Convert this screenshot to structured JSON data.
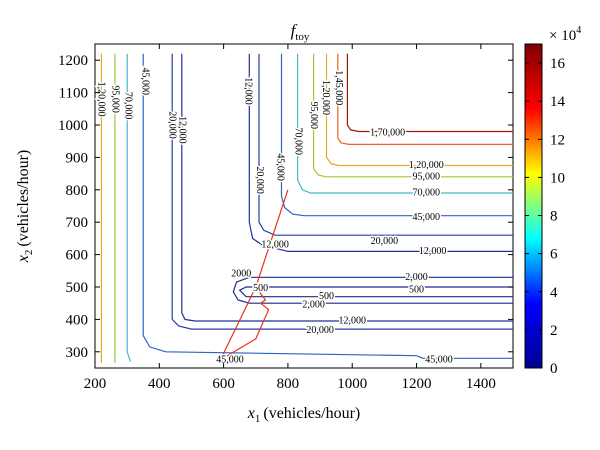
{
  "chart_data": {
    "type": "contour",
    "title": "f",
    "title_subscript": "toy",
    "xlabel_var": "x",
    "xlabel_sub": "1",
    "xlabel_unit": "(vehicles/hour)",
    "ylabel_var": "x",
    "ylabel_sub": "2",
    "ylabel_unit": "(vehicles/hour)",
    "xlim": [
      200,
      1500
    ],
    "ylim": [
      250,
      1250
    ],
    "x_ticks": [
      200,
      400,
      600,
      800,
      1000,
      1200,
      1400
    ],
    "y_ticks": [
      300,
      400,
      500,
      600,
      700,
      800,
      900,
      1000,
      1100,
      1200
    ],
    "colorbar": {
      "multiplier_base": "× 10",
      "multiplier_exp": "4",
      "range": [
        0,
        17
      ],
      "ticks": [
        0,
        2,
        4,
        6,
        8,
        10,
        12,
        14,
        16
      ],
      "stops": [
        "#00008f",
        "#0000ff",
        "#00ffff",
        "#ffff00",
        "#ff0000",
        "#800000"
      ]
    },
    "levels": [
      {
        "value": 500,
        "label": "500",
        "color": "#1a2c8c",
        "contour": [
          [
            1500,
            500
          ],
          [
            760,
            500
          ],
          [
            670,
            500
          ],
          [
            650,
            490
          ],
          [
            670,
            470
          ],
          [
            760,
            470
          ],
          [
            1500,
            470
          ]
        ]
      },
      {
        "value": 2000,
        "label": "2,000",
        "color": "#1a2c8c",
        "contour": [
          [
            1500,
            530
          ],
          [
            680,
            530
          ],
          [
            640,
            515
          ],
          [
            630,
            485
          ],
          [
            645,
            460
          ],
          [
            680,
            450
          ],
          [
            1500,
            450
          ]
        ]
      },
      {
        "value": 12000,
        "label": "12,000",
        "color": "#22319a",
        "contour": [
          [
            470,
            1220
          ],
          [
            470,
            420
          ],
          [
            480,
            400
          ],
          [
            510,
            395
          ],
          [
            1500,
            395
          ]
        ]
      },
      {
        "value": 12000,
        "label": "12,000",
        "color": "#22319a",
        "contour": [
          [
            680,
            1220
          ],
          [
            680,
            700
          ],
          [
            690,
            650
          ],
          [
            720,
            630
          ],
          [
            800,
            610
          ],
          [
            1500,
            610
          ]
        ]
      },
      {
        "value": 20000,
        "label": "20,000",
        "color": "#283ca8",
        "contour": [
          [
            440,
            1220
          ],
          [
            440,
            400
          ],
          [
            460,
            380
          ],
          [
            500,
            370
          ],
          [
            1500,
            370
          ]
        ]
      },
      {
        "value": 20000,
        "label": "20,000",
        "color": "#283ca8",
        "contour": [
          [
            710,
            1220
          ],
          [
            710,
            700
          ],
          [
            725,
            675
          ],
          [
            760,
            660
          ],
          [
            1500,
            660
          ]
        ]
      },
      {
        "value": 45000,
        "label": "45,000",
        "color": "#2b64c4",
        "contour": [
          [
            350,
            1220
          ],
          [
            350,
            350
          ],
          [
            370,
            315
          ],
          [
            420,
            300
          ],
          [
            1200,
            288
          ],
          [
            1220,
            280
          ],
          [
            1500,
            280
          ]
        ]
      },
      {
        "value": 45000,
        "label": "45,000",
        "color": "#2b64c4",
        "contour": [
          [
            780,
            1220
          ],
          [
            780,
            780
          ],
          [
            790,
            745
          ],
          [
            815,
            725
          ],
          [
            850,
            720
          ],
          [
            1500,
            720
          ]
        ]
      },
      {
        "value": 70000,
        "label": "70,000",
        "color": "#44b9c8",
        "contour": [
          [
            300,
            1220
          ],
          [
            300,
            300
          ],
          [
            310,
            270
          ]
        ]
      },
      {
        "value": 70000,
        "label": "70,000",
        "color": "#44b9c8",
        "contour": [
          [
            830,
            1220
          ],
          [
            830,
            830
          ],
          [
            845,
            800
          ],
          [
            870,
            790
          ],
          [
            1500,
            790
          ]
        ]
      },
      {
        "value": 95000,
        "label": "95,000",
        "color": "#9ccb3c",
        "contour": [
          [
            262,
            1220
          ],
          [
            262,
            265
          ]
        ]
      },
      {
        "value": 95000,
        "label": "95,000",
        "color": "#9ccb3c",
        "contour": [
          [
            880,
            1220
          ],
          [
            880,
            865
          ],
          [
            895,
            845
          ],
          [
            920,
            840
          ],
          [
            1500,
            840
          ]
        ]
      },
      {
        "value": 120000,
        "label": "1,20,000",
        "color": "#e9a82a",
        "contour": [
          [
            220,
            1220
          ],
          [
            220,
            265
          ]
        ]
      },
      {
        "value": 120000,
        "label": "1,20,000",
        "color": "#e9a82a",
        "contour": [
          [
            920,
            1220
          ],
          [
            920,
            900
          ],
          [
            935,
            880
          ],
          [
            960,
            875
          ],
          [
            1500,
            875
          ]
        ]
      },
      {
        "value": 145000,
        "label": "1,45,000",
        "color": "#e8622a",
        "contour": [
          [
            955,
            1220
          ],
          [
            955,
            960
          ],
          [
            965,
            945
          ],
          [
            990,
            940
          ],
          [
            1500,
            940
          ]
        ]
      },
      {
        "value": 170000,
        "label": "1,70,000",
        "color": "#9a1a10",
        "contour": [
          [
            985,
            1220
          ],
          [
            985,
            1000
          ],
          [
            995,
            985
          ],
          [
            1020,
            980
          ],
          [
            1500,
            980
          ]
        ]
      }
    ],
    "contour_labels": [
      {
        "text": "1,20,000",
        "x": 218,
        "y": 1080,
        "rotate": 90
      },
      {
        "text": "95,000",
        "x": 262,
        "y": 1080,
        "rotate": 90
      },
      {
        "text": "70,000",
        "x": 302,
        "y": 1060,
        "rotate": 90
      },
      {
        "text": "45,000",
        "x": 355,
        "y": 1135,
        "rotate": 90
      },
      {
        "text": "20,000",
        "x": 440,
        "y": 1000,
        "rotate": 90
      },
      {
        "text": "12,000",
        "x": 470,
        "y": 985,
        "rotate": 90
      },
      {
        "text": "12,000",
        "x": 676,
        "y": 1105,
        "rotate": 90
      },
      {
        "text": "20,000",
        "x": 712,
        "y": 830,
        "rotate": 90
      },
      {
        "text": "45,000",
        "x": 775,
        "y": 870,
        "rotate": 90
      },
      {
        "text": "70,000",
        "x": 832,
        "y": 950,
        "rotate": 90
      },
      {
        "text": "95,000",
        "x": 880,
        "y": 1030,
        "rotate": 90
      },
      {
        "text": "1,20,000",
        "x": 917,
        "y": 1085,
        "rotate": 90
      },
      {
        "text": "1,45,000",
        "x": 957,
        "y": 1115,
        "rotate": 90
      },
      {
        "text": "1,70,000",
        "x": 1110,
        "y": 975,
        "rotate": 0
      },
      {
        "text": "1,20,000",
        "x": 1230,
        "y": 875,
        "rotate": 0
      },
      {
        "text": "95,000",
        "x": 1230,
        "y": 840,
        "rotate": 0
      },
      {
        "text": "70,000",
        "x": 1230,
        "y": 790,
        "rotate": 0
      },
      {
        "text": "45,000",
        "x": 1230,
        "y": 715,
        "rotate": 0
      },
      {
        "text": "20,000",
        "x": 1100,
        "y": 640,
        "rotate": 0
      },
      {
        "text": "12,000",
        "x": 1250,
        "y": 610,
        "rotate": 0
      },
      {
        "text": "12,000",
        "x": 760,
        "y": 630,
        "rotate": 0
      },
      {
        "text": "2,000",
        "x": 1200,
        "y": 530,
        "rotate": 0
      },
      {
        "text": "500",
        "x": 1200,
        "y": 490,
        "rotate": 0
      },
      {
        "text": "2000",
        "x": 655,
        "y": 540,
        "rotate": 0
      },
      {
        "text": "500",
        "x": 715,
        "y": 495,
        "rotate": 0
      },
      {
        "text": "500",
        "x": 920,
        "y": 470,
        "rotate": 0
      },
      {
        "text": "2,000",
        "x": 880,
        "y": 445,
        "rotate": 0
      },
      {
        "text": "12,000",
        "x": 1000,
        "y": 395,
        "rotate": 0
      },
      {
        "text": "20,000",
        "x": 900,
        "y": 365,
        "rotate": 0
      },
      {
        "text": "45,000",
        "x": 620,
        "y": 275,
        "rotate": 0
      },
      {
        "text": "45,000",
        "x": 1270,
        "y": 275,
        "rotate": 0
      }
    ],
    "path": {
      "color": "#e8331c",
      "points": [
        [
          590,
          275
        ],
        [
          700,
          500
        ],
        [
          800,
          800
        ],
        [
          700,
          500
        ],
        [
          730,
          460
        ],
        [
          715,
          450
        ],
        [
          740,
          430
        ],
        [
          700,
          340
        ],
        [
          590,
          275
        ]
      ]
    }
  }
}
